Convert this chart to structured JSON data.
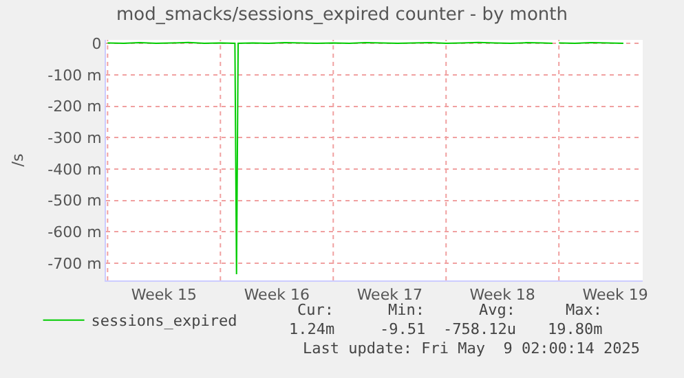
{
  "chart_data": {
    "type": "line",
    "title": "mod_smacks/sessions_expired counter - by month",
    "ylabel": "/s",
    "x": [
      "2025-04-07",
      "2025-04-08",
      "2025-04-09",
      "2025-04-10",
      "2025-04-11",
      "2025-04-12",
      "2025-04-13",
      "2025-04-14",
      "2025-04-14T21:36",
      "2025-04-15",
      "2025-04-15T02:24",
      "2025-04-16",
      "2025-04-17",
      "2025-04-18",
      "2025-04-19",
      "2025-04-20",
      "2025-04-21",
      "2025-04-22",
      "2025-04-23",
      "2025-04-24",
      "2025-04-25",
      "2025-04-26",
      "2025-04-27",
      "2025-04-28",
      "2025-04-29",
      "2025-04-30",
      "2025-05-01",
      "2025-05-02",
      "2025-05-03",
      "2025-05-04",
      "2025-05-04T14:24",
      "2025-05-04T19:12",
      "2025-05-05",
      "2025-05-06",
      "2025-05-07",
      "2025-05-08",
      "2025-05-09"
    ],
    "series": [
      {
        "name": "sessions_expired",
        "color": "#00cc00",
        "values": [
          2,
          1,
          3,
          1,
          2,
          4,
          1,
          2,
          1,
          -735,
          1,
          2,
          1,
          3,
          2,
          1,
          2,
          1,
          3,
          2,
          1,
          2,
          3,
          1,
          2,
          4,
          2,
          1,
          3,
          2,
          1,
          null,
          2,
          1,
          3,
          2,
          1
        ]
      }
    ],
    "xlim": [
      "2025-04-06T21:36",
      "2025-05-10T04:48"
    ],
    "xticks": [
      {
        "value": "2025-04-07",
        "label": null
      },
      {
        "value": "2025-04-10T12:00",
        "label": "Week 15"
      },
      {
        "value": "2025-04-14",
        "label": null
      },
      {
        "value": "2025-04-17T12:00",
        "label": "Week 16"
      },
      {
        "value": "2025-04-21",
        "label": null
      },
      {
        "value": "2025-04-24T12:00",
        "label": "Week 17"
      },
      {
        "value": "2025-04-28",
        "label": null
      },
      {
        "value": "2025-05-01T12:00",
        "label": "Week 18"
      },
      {
        "value": "2025-05-05",
        "label": null
      },
      {
        "value": "2025-05-08T12:00",
        "label": "Week 19"
      }
    ],
    "ylim": [
      -755,
      12
    ],
    "yticks": [
      {
        "value": 0,
        "label": "0"
      },
      {
        "value": -100,
        "label": "-100 m"
      },
      {
        "value": -200,
        "label": "-200 m"
      },
      {
        "value": -300,
        "label": "-300 m"
      },
      {
        "value": -400,
        "label": "-400 m"
      },
      {
        "value": -500,
        "label": "-500 m"
      },
      {
        "value": -600,
        "label": "-600 m"
      },
      {
        "value": -700,
        "label": "-700 m"
      }
    ],
    "grid": true,
    "legend": "bottom left",
    "marker": "none",
    "line_style": "solid",
    "annotations": [
      "Cur:",
      "1.24m",
      "Min:",
      "-9.51",
      "Avg:",
      "-758.12u",
      "Max:",
      "19.80m",
      "Last update: Fri May  9 02:00:14 2025"
    ]
  }
}
